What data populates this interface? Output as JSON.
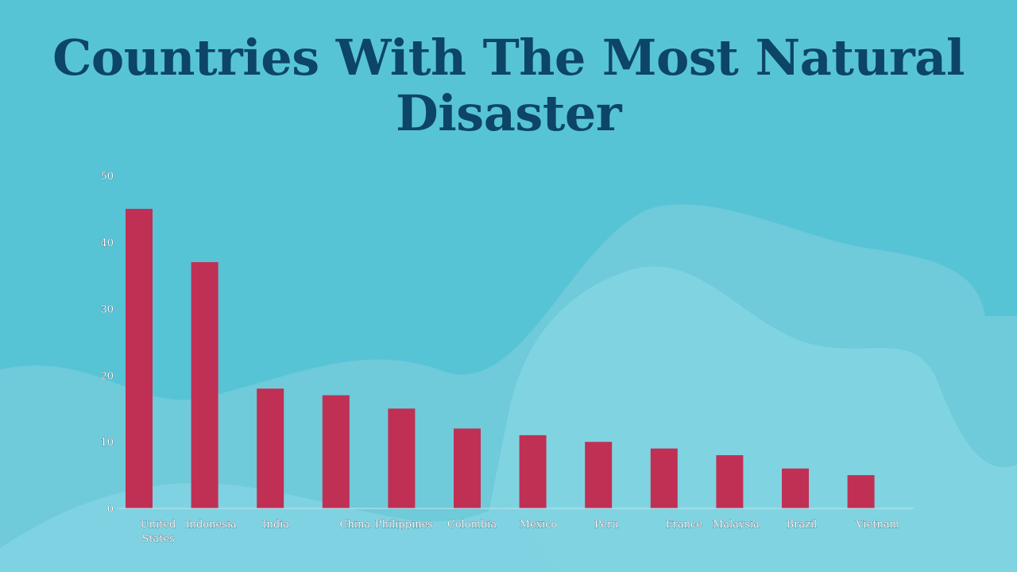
{
  "chart_data": {
    "type": "bar",
    "title": "Countries With The Most Natural Disaster",
    "categories": [
      "United States",
      "Indonesia",
      "India",
      "China",
      "Philippines",
      "Colombia",
      "Mexico",
      "Peru",
      "France",
      "Malaysia",
      "Brazil",
      "Vietnam"
    ],
    "values": [
      45,
      37,
      18,
      17,
      15,
      12,
      11,
      10,
      9,
      8,
      6,
      5
    ],
    "ylim": [
      0,
      50
    ],
    "yticks": [
      0,
      10,
      20,
      30,
      40,
      50
    ],
    "grid": false,
    "legend": "none"
  },
  "colors": {
    "background": "#57c4d6",
    "bar": "#c03054",
    "title": "#0d4566",
    "wave_dark": "#4fbcd0",
    "wave_light": "#7fd2e1",
    "wave_mid": "#6fcad9"
  }
}
